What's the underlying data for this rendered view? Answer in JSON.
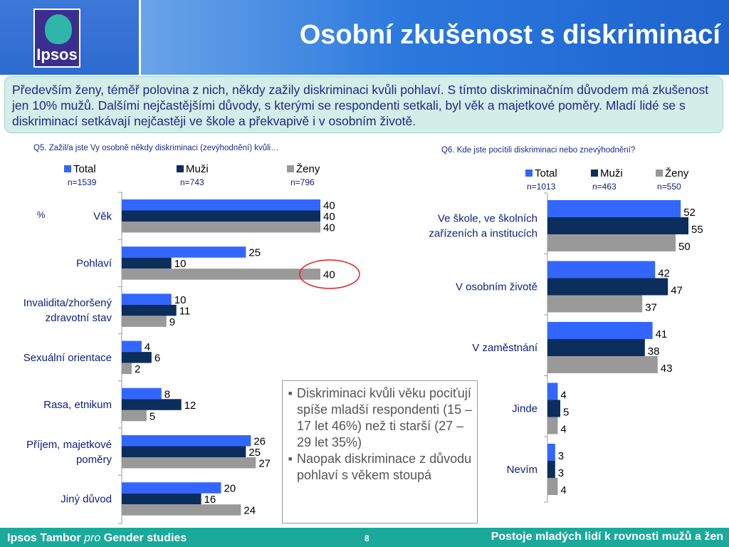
{
  "slide": {
    "title": "Osobní zkušenost s diskriminací",
    "summary": "Především ženy, téměř polovina z nich, někdy zažily diskriminaci kvůli pohlaví. S tímto diskriminačním důvodem má zkušenost jen 10% mužů. Dalšími nejčastějšími důvody, s kterými se respondenti setkali, byl věk a majetkové poměry. Mladí lidé se s diskriminací setkávají nejčastěji ve škole a překvapivě i v osobním životě.",
    "logo_text": "Ipsos",
    "note_items": [
      "Diskriminaci kvůli věku pociťují spíše mladší respondenti (15 – 17 let 46%) než ti starší (27 – 29 let 35%)",
      "Naopak diskriminace z důvodu pohlaví s věkem stoupá"
    ],
    "footer": {
      "left_prefix": "Ipsos Tambor ",
      "left_italic": "pro",
      "left_suffix": " Gender studies",
      "page": "8",
      "right": "Postoje mladých lidí k rovnosti mužů a žen"
    }
  },
  "colors": {
    "total": "#3366ff",
    "muzi": "#0b2e5c",
    "zeny": "#999999",
    "label": "#0b1f7a",
    "highlight": "#dd2222"
  },
  "chart_data": [
    {
      "type": "bar",
      "orientation": "horizontal",
      "title": "Q5. Zažil/a jste Vy osobně někdy diskriminaci (zevýhodnění) kvůli…",
      "unit_label": "%",
      "categories": [
        "Věk",
        "Pohlaví",
        "Invalidita/zhoršený zdravotní stav",
        "Sexuální orientace",
        "Rasa, etnikum",
        "Příjem, majetkové poměry",
        "Jiný důvod"
      ],
      "series": [
        {
          "name": "Total",
          "n": "n=1539",
          "values": [
            40,
            25,
            10,
            4,
            8,
            26,
            20
          ]
        },
        {
          "name": "Muži",
          "n": "n=743",
          "values": [
            40,
            10,
            11,
            6,
            12,
            25,
            16
          ]
        },
        {
          "name": "Ženy",
          "n": "n=796",
          "values": [
            40,
            40,
            9,
            2,
            5,
            27,
            24
          ]
        }
      ],
      "highlight": {
        "category": "Pohlaví",
        "series": "Ženy"
      },
      "legend": "top"
    },
    {
      "type": "bar",
      "orientation": "horizontal",
      "title": "Q6. Kde jste pocítili diskriminaci nebo znevýhodnění?",
      "categories": [
        "Ve škole, ve školních zařízeních a institucích",
        "V osobním životě",
        "V zaměstnání",
        "Jinde",
        "Nevím"
      ],
      "series": [
        {
          "name": "Total",
          "n": "n=1013",
          "values": [
            52,
            42,
            41,
            4,
            3
          ]
        },
        {
          "name": "Muži",
          "n": "n=463",
          "values": [
            55,
            47,
            38,
            5,
            3
          ]
        },
        {
          "name": "Ženy",
          "n": "n=550",
          "values": [
            50,
            37,
            43,
            4,
            4
          ]
        }
      ],
      "legend": "top"
    }
  ]
}
